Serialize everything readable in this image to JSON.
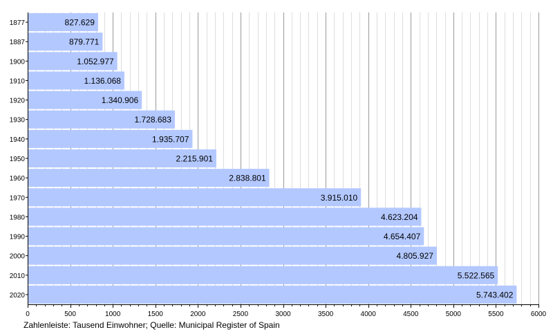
{
  "chart_data": {
    "type": "bar",
    "orientation": "horizontal",
    "categories": [
      "1877",
      "1887",
      "1900",
      "1910",
      "1920",
      "1930",
      "1940",
      "1950",
      "1960",
      "1970",
      "1980",
      "1990",
      "2000",
      "2010",
      "2020"
    ],
    "values": [
      827.629,
      879.771,
      1052.977,
      1136.068,
      1340.906,
      1728.683,
      1935.707,
      2215.901,
      2838.801,
      3915.01,
      4623.204,
      4654.407,
      4805.927,
      5522.565,
      5743.402
    ],
    "value_labels": [
      "827.629",
      "879.771",
      "1.052.977",
      "1.136.068",
      "1.340.906",
      "1.728.683",
      "1.935.707",
      "2.215.901",
      "2.838.801",
      "3.915.010",
      "4.623.204",
      "4.654.407",
      "4.805.927",
      "5.522.565",
      "5.743.402"
    ],
    "x_ticks": [
      0,
      500,
      1000,
      1500,
      2000,
      2500,
      3000,
      3500,
      4000,
      4500,
      5000,
      5500,
      6000
    ],
    "xlim": [
      0,
      6000
    ],
    "grid": true,
    "bar_color": "#b3c8ff",
    "caption": "Zahlenleiste: Tausend Einwohner; Quelle: Municipal Register of Spain"
  }
}
